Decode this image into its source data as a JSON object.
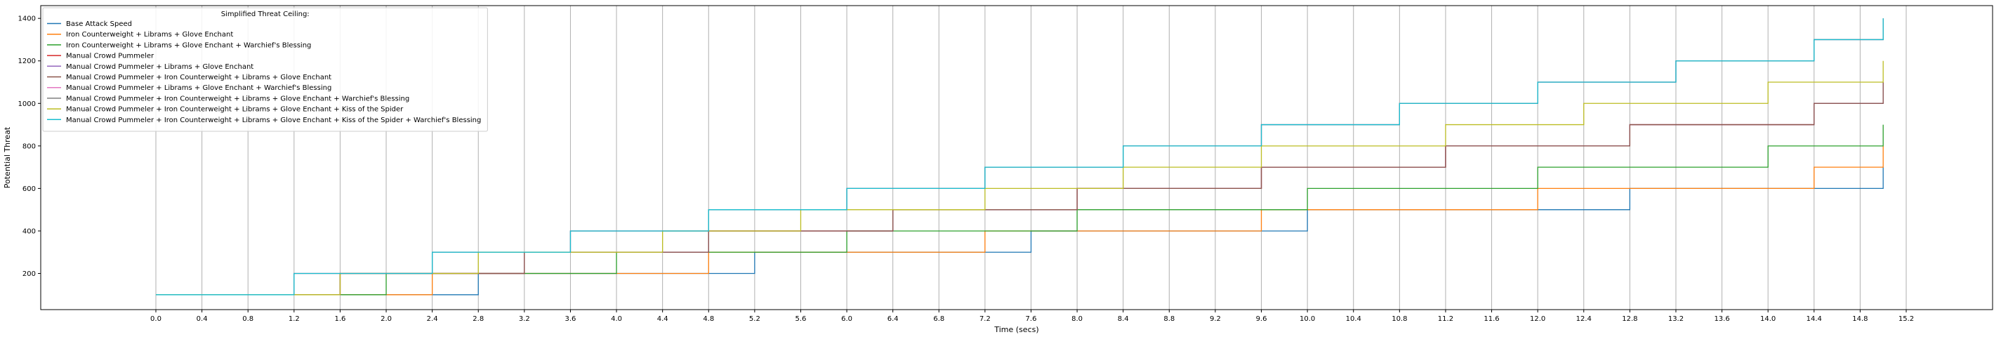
{
  "chart_data": {
    "type": "line",
    "step": true,
    "xlabel": "Time (secs)",
    "ylabel": "Potential Threat",
    "xlim": [
      -1.0,
      15.95
    ],
    "ylim": [
      30,
      1460
    ],
    "xticks": [
      "0.0",
      "0.4",
      "0.8",
      "1.2",
      "1.6",
      "2.0",
      "2.4",
      "2.8",
      "3.2",
      "3.6",
      "4.0",
      "4.4",
      "4.8",
      "5.2",
      "5.6",
      "6.0",
      "6.4",
      "6.8",
      "7.2",
      "7.6",
      "8.0",
      "8.4",
      "8.8",
      "9.2",
      "9.6",
      "10.0",
      "10.4",
      "10.8",
      "11.2",
      "11.6",
      "12.0",
      "12.4",
      "12.8",
      "13.2",
      "13.6",
      "14.0",
      "14.4",
      "14.8",
      "15.2"
    ],
    "yticks": [
      "200",
      "400",
      "600",
      "800",
      "1000",
      "1200",
      "1400"
    ],
    "grid": "vertical",
    "legend": {
      "title": "Simplified Threat Ceiling:",
      "position": "upper-left"
    },
    "series": [
      {
        "name": "Base Attack Speed",
        "color": "#1f77b4",
        "x": [
          0,
          2.8,
          5.2,
          7.6,
          10.0,
          12.8,
          15.0
        ],
        "y": [
          100,
          200,
          300,
          400,
          500,
          600,
          700
        ]
      },
      {
        "name": "Iron Counterweight + Librams + Glove Enchant",
        "color": "#ff7f0e",
        "x": [
          0,
          2.4,
          4.8,
          7.2,
          9.6,
          12.0,
          14.4,
          15.0
        ],
        "y": [
          100,
          200,
          300,
          400,
          500,
          600,
          700,
          800
        ]
      },
      {
        "name": "Iron Counterweight + Librams + Glove Enchant + Warchief's Blessing",
        "color": "#2ca02c",
        "x": [
          0,
          2.0,
          4.0,
          6.0,
          8.0,
          10.0,
          12.0,
          14.0,
          15.0
        ],
        "y": [
          100,
          200,
          300,
          400,
          500,
          600,
          700,
          800,
          900
        ]
      },
      {
        "name": "Manual Crowd Pummeler",
        "color": "#d62728",
        "x": [
          0,
          1.6,
          3.2,
          4.8,
          6.4,
          8.0,
          9.6,
          11.2,
          12.8,
          14.4,
          15.0
        ],
        "y": [
          100,
          200,
          300,
          400,
          500,
          600,
          700,
          800,
          900,
          1000,
          1000
        ]
      },
      {
        "name": "Manual Crowd Pummeler + Librams + Glove Enchant",
        "color": "#9467bd",
        "x": [
          0,
          1.6,
          3.2,
          4.8,
          6.4,
          8.0,
          9.6,
          11.2,
          12.8,
          14.4,
          15.0
        ],
        "y": [
          100,
          200,
          300,
          400,
          500,
          600,
          700,
          800,
          900,
          1000,
          1100
        ]
      },
      {
        "name": "Manual Crowd Pummeler + Iron Counterweight + Librams + Glove Enchant",
        "color": "#8c564b",
        "x": [
          0,
          1.6,
          3.2,
          4.8,
          6.4,
          8.0,
          9.6,
          11.2,
          12.8,
          14.4,
          15.0
        ],
        "y": [
          100,
          200,
          300,
          400,
          500,
          600,
          700,
          800,
          900,
          1000,
          1100
        ]
      },
      {
        "name": "Manual Crowd Pummeler + Librams + Glove Enchant + Warchief's Blessing",
        "color": "#e377c2",
        "x": [
          0,
          1.2,
          2.4,
          3.6,
          4.8,
          6.0,
          7.2,
          8.4,
          9.6,
          10.8,
          12.0,
          13.2,
          14.4,
          15.0
        ],
        "y": [
          100,
          200,
          300,
          400,
          500,
          600,
          700,
          800,
          900,
          1000,
          1100,
          1200,
          1300,
          1400
        ]
      },
      {
        "name": "Manual Crowd Pummeler + Iron Counterweight + Librams + Glove Enchant + Warchief's Blessing",
        "color": "#7f7f7f",
        "x": [
          0,
          1.2,
          2.4,
          3.6,
          4.8,
          6.0,
          7.2,
          8.4,
          9.6,
          10.8,
          12.0,
          13.2,
          14.4,
          15.0
        ],
        "y": [
          100,
          200,
          300,
          400,
          500,
          600,
          700,
          800,
          900,
          1000,
          1100,
          1200,
          1300,
          1400
        ]
      },
      {
        "name": "Manual Crowd Pummeler + Iron Counterweight + Librams + Glove Enchant + Kiss of the Spider",
        "color": "#bcbd22",
        "x": [
          0,
          1.6,
          2.8,
          4.4,
          5.6,
          7.2,
          8.4,
          9.6,
          11.2,
          12.4,
          14.0,
          15.0
        ],
        "y": [
          100,
          200,
          300,
          400,
          500,
          600,
          700,
          800,
          900,
          1000,
          1100,
          1200
        ]
      },
      {
        "name": "Manual Crowd Pummeler + Iron Counterweight + Librams + Glove Enchant + Kiss of the Spider + Warchief's Blessing",
        "color": "#17becf",
        "x": [
          0,
          1.2,
          2.4,
          3.6,
          4.8,
          6.0,
          7.2,
          8.4,
          9.6,
          10.8,
          12.0,
          13.2,
          14.4,
          15.0
        ],
        "y": [
          100,
          200,
          300,
          400,
          500,
          600,
          700,
          800,
          900,
          1000,
          1100,
          1200,
          1300,
          1400
        ]
      }
    ]
  }
}
